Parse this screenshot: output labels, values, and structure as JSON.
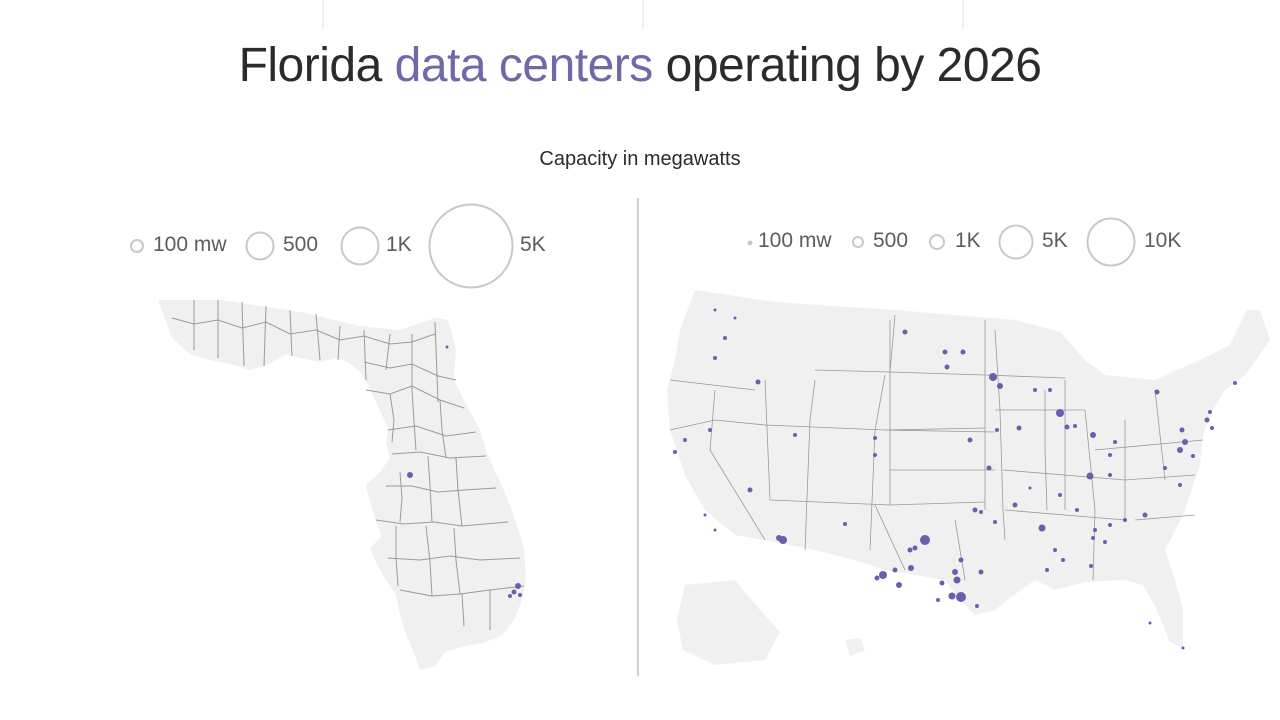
{
  "title": {
    "part1": "Florida ",
    "highlight": "data centers",
    "part2": " operating by 2026"
  },
  "subtitle": "Capacity in megawatts",
  "colors": {
    "accent": "#6f6aa7",
    "dot": "#6860ad",
    "land": "#f0f0f0",
    "border": "#9a9a9a",
    "legend_circle": "#c8c8c8"
  },
  "legend_florida": [
    "100 mw",
    "500",
    "1K",
    "5K"
  ],
  "legend_us": [
    "100 mw",
    "500",
    "1K",
    "5K",
    "10K"
  ]
}
